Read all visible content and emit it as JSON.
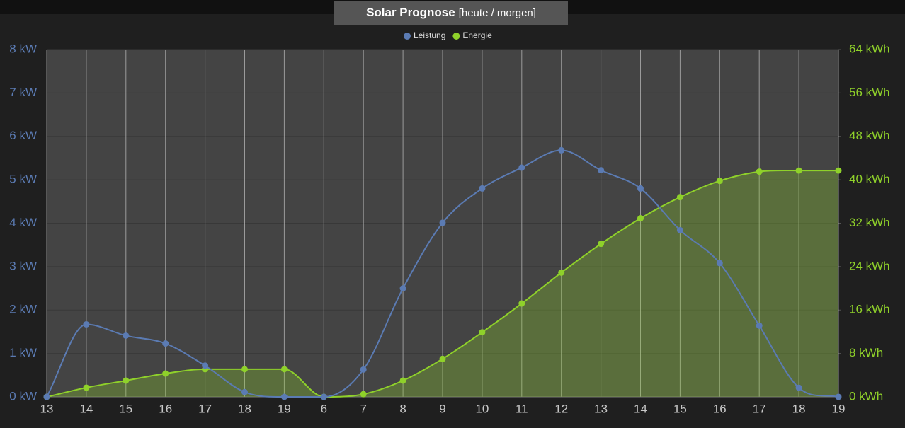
{
  "chart_data": {
    "type": "line",
    "title": "Solar Prognose",
    "subtitle": "[heute / morgen]",
    "categories": [
      "13",
      "14",
      "15",
      "16",
      "17",
      "18",
      "19",
      "6",
      "7",
      "8",
      "9",
      "10",
      "11",
      "12",
      "13",
      "14",
      "15",
      "16",
      "17",
      "18",
      "19"
    ],
    "series": [
      {
        "name": "Leistung",
        "color": "#5b7bb3",
        "area": false,
        "values": [
          0,
          1.67,
          1.41,
          1.23,
          0.72,
          0.11,
          0,
          0,
          0.63,
          2.5,
          4.01,
          4.8,
          5.28,
          5.68,
          5.22,
          4.8,
          3.84,
          3.08,
          1.64,
          0.21,
          0
        ]
      },
      {
        "name": "Energie",
        "color": "#8fd12a",
        "axis": "y2",
        "area": true,
        "values": [
          0,
          1.7,
          3.0,
          4.3,
          5.1,
          5.1,
          5.1,
          0,
          0.5,
          3.0,
          7.0,
          11.9,
          17.2,
          22.9,
          28.2,
          32.9,
          36.8,
          39.8,
          41.5,
          41.7,
          41.7
        ]
      }
    ],
    "ylim": [
      0,
      8
    ],
    "yticks": [
      {
        "value": 0,
        "label": "0 kW"
      },
      {
        "value": 1,
        "label": "1 kW"
      },
      {
        "value": 2,
        "label": "2 kW"
      },
      {
        "value": 3,
        "label": "3 kW"
      },
      {
        "value": 4,
        "label": "4 kW"
      },
      {
        "value": 5,
        "label": "5 kW"
      },
      {
        "value": 6,
        "label": "6 kW"
      },
      {
        "value": 7,
        "label": "7 kW"
      },
      {
        "value": 8,
        "label": "8 kW"
      }
    ],
    "y2lim": [
      0,
      64
    ],
    "y2ticks": [
      {
        "value": 0,
        "label": "0 kWh"
      },
      {
        "value": 8,
        "label": "8 kWh"
      },
      {
        "value": 16,
        "label": "16 kWh"
      },
      {
        "value": 24,
        "label": "24 kWh"
      },
      {
        "value": 32,
        "label": "32 kWh"
      },
      {
        "value": 40,
        "label": "40 kWh"
      },
      {
        "value": 48,
        "label": "48 kWh"
      },
      {
        "value": 56,
        "label": "56 kWh"
      },
      {
        "value": 64,
        "label": "64 kWh"
      }
    ],
    "grid": true,
    "legend": "top",
    "smooth": true
  }
}
